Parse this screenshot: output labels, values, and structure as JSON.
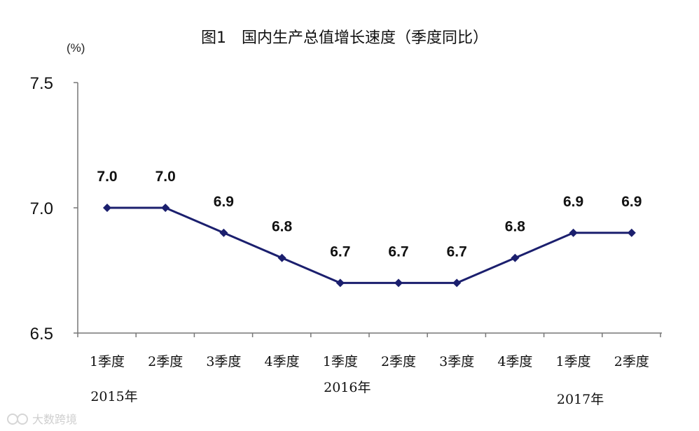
{
  "chart_data": {
    "type": "line",
    "title": "图1　国内生产总值增长速度（季度同比）",
    "unit_label": "(%)",
    "categories": [
      "1季度",
      "2季度",
      "3季度",
      "4季度",
      "1季度",
      "2季度",
      "3季度",
      "4季度",
      "1季度",
      "2季度"
    ],
    "year_labels": [
      {
        "label": "2015年",
        "category_index": 0
      },
      {
        "label": "2016年",
        "category_index": 4
      },
      {
        "label": "2017年",
        "category_index": 8
      }
    ],
    "series": [
      {
        "values": [
          7.0,
          7.0,
          6.9,
          6.8,
          6.7,
          6.7,
          6.7,
          6.8,
          6.9,
          6.9
        ],
        "color": "#1b1f6e"
      }
    ],
    "data_labels": [
      "7.0",
      "7.0",
      "6.9",
      "6.8",
      "6.7",
      "6.7",
      "6.7",
      "6.8",
      "6.9",
      "6.9"
    ],
    "yticks": [
      {
        "value": 6.5,
        "label": "6.5"
      },
      {
        "value": 7.0,
        "label": "7.0"
      },
      {
        "value": 7.5,
        "label": "7.5"
      }
    ],
    "ylim": [
      6.5,
      7.5
    ],
    "grid": false,
    "legend": "none"
  },
  "watermark": {
    "text": "大数跨境"
  }
}
